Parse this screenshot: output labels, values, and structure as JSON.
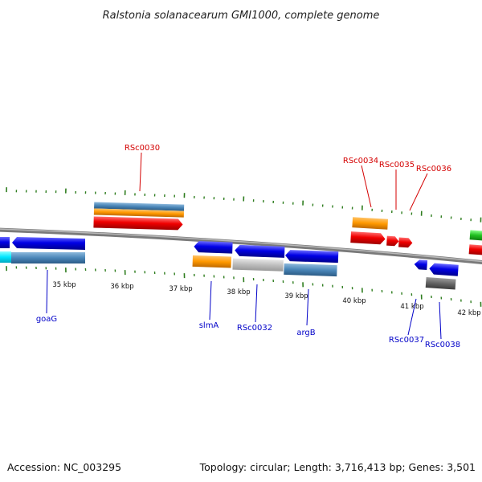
{
  "title": "Ralstonia solanacearum GMI1000, complete genome",
  "footer": {
    "accession": "Accession: NC_003295",
    "summary": "Topology: circular; Length: 3,716,413 bp; Genes: 3,501"
  },
  "colors": {
    "forward_label": "#d40000",
    "reverse_label": "#0000c8",
    "tick": "#2e7d1e",
    "backbone": "#8a8a8a"
  },
  "scale_labels": [
    "35 kbp",
    "36 kbp",
    "37 kbp",
    "38 kbp",
    "39 kbp",
    "40 kbp",
    "41 kbp",
    "42 kbp"
  ],
  "forward_gene_labels": [
    "RSc0030",
    "RSc0034",
    "RSc0035",
    "RSc0036"
  ],
  "reverse_gene_labels": [
    "goaG",
    "slmA",
    "RSc0032",
    "argB",
    "RSc0037",
    "RSc0038"
  ]
}
